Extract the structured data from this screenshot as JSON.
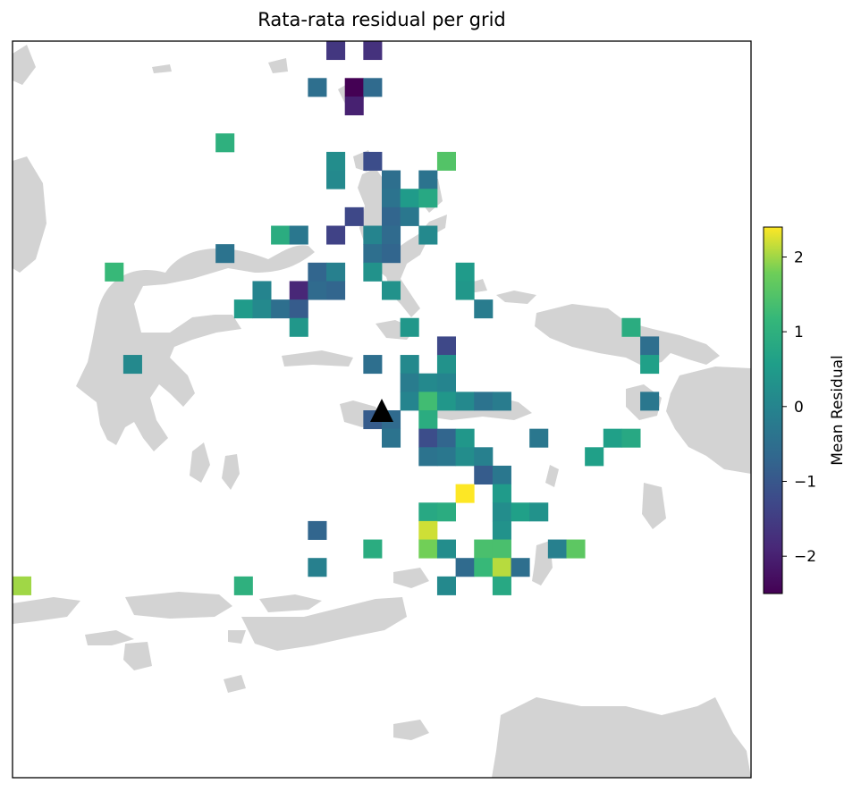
{
  "title": "Rata-rata residual per grid",
  "colors": {
    "land": "#d3d3d3",
    "ocean": "#ffffff",
    "frame": "#000000",
    "station_marker": "#000000",
    "colormap": "viridis"
  },
  "colorbar": {
    "label": "Mean Residual",
    "min": -2.5,
    "max": 2.4,
    "ticks": [
      -2,
      -1,
      0,
      1,
      2
    ],
    "tick_labels": [
      "−2",
      "−1",
      "0",
      "1",
      "2"
    ]
  },
  "station_marker": {
    "shape": "triangle",
    "icon": "triangle-up-icon"
  },
  "chart_data": {
    "type": "heatmap",
    "title": "Rata-rata residual per grid",
    "value_label": "Mean Residual",
    "grid_units": "cell column / row index from top-left of map frame",
    "cells": [
      {
        "col": 17,
        "row": 0,
        "value": -1.6
      },
      {
        "col": 19,
        "row": 0,
        "value": -1.7
      },
      {
        "col": 16,
        "row": 2,
        "value": -0.5
      },
      {
        "col": 18,
        "row": 2,
        "value": -2.5
      },
      {
        "col": 19,
        "row": 2,
        "value": -0.6
      },
      {
        "col": 18,
        "row": 3,
        "value": -2.0
      },
      {
        "col": 11,
        "row": 5,
        "value": 1.0
      },
      {
        "col": 17,
        "row": 6,
        "value": 0.2
      },
      {
        "col": 19,
        "row": 6,
        "value": -1.2
      },
      {
        "col": 23,
        "row": 6,
        "value": 1.5
      },
      {
        "col": 17,
        "row": 7,
        "value": 0.1
      },
      {
        "col": 20,
        "row": 7,
        "value": -0.5
      },
      {
        "col": 22,
        "row": 7,
        "value": -0.4
      },
      {
        "col": 20,
        "row": 8,
        "value": -0.4
      },
      {
        "col": 21,
        "row": 8,
        "value": 0.5
      },
      {
        "col": 22,
        "row": 8,
        "value": 0.8
      },
      {
        "col": 18,
        "row": 9,
        "value": -1.3
      },
      {
        "col": 20,
        "row": 9,
        "value": -0.7
      },
      {
        "col": 21,
        "row": 9,
        "value": -0.3
      },
      {
        "col": 14,
        "row": 10,
        "value": 0.9
      },
      {
        "col": 15,
        "row": 10,
        "value": -0.3
      },
      {
        "col": 17,
        "row": 10,
        "value": -1.4
      },
      {
        "col": 19,
        "row": 10,
        "value": 0.0
      },
      {
        "col": 20,
        "row": 10,
        "value": -0.6
      },
      {
        "col": 22,
        "row": 10,
        "value": 0.1
      },
      {
        "col": 11,
        "row": 11,
        "value": -0.4
      },
      {
        "col": 19,
        "row": 11,
        "value": -0.5
      },
      {
        "col": 20,
        "row": 11,
        "value": -0.7
      },
      {
        "col": 5,
        "row": 12,
        "value": 1.2
      },
      {
        "col": 16,
        "row": 12,
        "value": -0.7
      },
      {
        "col": 17,
        "row": 12,
        "value": -0.1
      },
      {
        "col": 19,
        "row": 12,
        "value": 0.3
      },
      {
        "col": 24,
        "row": 12,
        "value": 0.5
      },
      {
        "col": 13,
        "row": 13,
        "value": 0.0
      },
      {
        "col": 15,
        "row": 13,
        "value": -1.9
      },
      {
        "col": 16,
        "row": 13,
        "value": -0.6
      },
      {
        "col": 17,
        "row": 13,
        "value": -0.7
      },
      {
        "col": 20,
        "row": 13,
        "value": 0.3
      },
      {
        "col": 24,
        "row": 13,
        "value": 0.4
      },
      {
        "col": 12,
        "row": 14,
        "value": 0.5
      },
      {
        "col": 13,
        "row": 14,
        "value": 0.1
      },
      {
        "col": 14,
        "row": 14,
        "value": -0.5
      },
      {
        "col": 15,
        "row": 14,
        "value": -0.9
      },
      {
        "col": 25,
        "row": 14,
        "value": -0.2
      },
      {
        "col": 15,
        "row": 15,
        "value": 0.4
      },
      {
        "col": 21,
        "row": 15,
        "value": 0.4
      },
      {
        "col": 33,
        "row": 15,
        "value": 0.9
      },
      {
        "col": 23,
        "row": 16,
        "value": -1.3
      },
      {
        "col": 34,
        "row": 16,
        "value": -0.5
      },
      {
        "col": 6,
        "row": 17,
        "value": 0.1
      },
      {
        "col": 19,
        "row": 17,
        "value": -0.5
      },
      {
        "col": 21,
        "row": 17,
        "value": 0.1
      },
      {
        "col": 23,
        "row": 17,
        "value": 0.3
      },
      {
        "col": 34,
        "row": 17,
        "value": 0.6
      },
      {
        "col": 21,
        "row": 18,
        "value": -0.2
      },
      {
        "col": 22,
        "row": 18,
        "value": 0.1
      },
      {
        "col": 23,
        "row": 18,
        "value": 0.0
      },
      {
        "col": 21,
        "row": 19,
        "value": 0.0
      },
      {
        "col": 22,
        "row": 19,
        "value": 1.3
      },
      {
        "col": 23,
        "row": 19,
        "value": 0.4
      },
      {
        "col": 24,
        "row": 19,
        "value": 0.1
      },
      {
        "col": 25,
        "row": 19,
        "value": -0.4
      },
      {
        "col": 26,
        "row": 19,
        "value": -0.2
      },
      {
        "col": 34,
        "row": 19,
        "value": -0.3
      },
      {
        "col": 40,
        "row": 19,
        "value": -0.2
      },
      {
        "col": 19,
        "row": 20,
        "value": -0.9
      },
      {
        "col": 20,
        "row": 20,
        "value": -0.6
      },
      {
        "col": 22,
        "row": 20,
        "value": 0.9
      },
      {
        "col": 20,
        "row": 21,
        "value": -0.4
      },
      {
        "col": 22,
        "row": 21,
        "value": -1.2
      },
      {
        "col": 23,
        "row": 21,
        "value": -0.7
      },
      {
        "col": 24,
        "row": 21,
        "value": 0.4
      },
      {
        "col": 28,
        "row": 21,
        "value": -0.3
      },
      {
        "col": 32,
        "row": 21,
        "value": 0.6
      },
      {
        "col": 33,
        "row": 21,
        "value": 0.8
      },
      {
        "col": 22,
        "row": 22,
        "value": -0.4
      },
      {
        "col": 23,
        "row": 22,
        "value": -0.3
      },
      {
        "col": 24,
        "row": 22,
        "value": 0.2
      },
      {
        "col": 25,
        "row": 22,
        "value": -0.1
      },
      {
        "col": 31,
        "row": 22,
        "value": 0.6
      },
      {
        "col": 25,
        "row": 23,
        "value": -0.9
      },
      {
        "col": 26,
        "row": 23,
        "value": -0.3
      },
      {
        "col": 24,
        "row": 24,
        "value": 2.4
      },
      {
        "col": 26,
        "row": 24,
        "value": 0.5
      },
      {
        "col": 22,
        "row": 25,
        "value": 0.8
      },
      {
        "col": 23,
        "row": 25,
        "value": 0.9
      },
      {
        "col": 26,
        "row": 25,
        "value": 0.2
      },
      {
        "col": 27,
        "row": 25,
        "value": 0.6
      },
      {
        "col": 28,
        "row": 25,
        "value": 0.3
      },
      {
        "col": 16,
        "row": 26,
        "value": -0.7
      },
      {
        "col": 22,
        "row": 26,
        "value": 2.2
      },
      {
        "col": 26,
        "row": 26,
        "value": 0.3
      },
      {
        "col": 19,
        "row": 27,
        "value": 0.9
      },
      {
        "col": 22,
        "row": 27,
        "value": 1.8
      },
      {
        "col": 23,
        "row": 27,
        "value": 0.2
      },
      {
        "col": 25,
        "row": 27,
        "value": 1.4
      },
      {
        "col": 26,
        "row": 27,
        "value": 1.4
      },
      {
        "col": 29,
        "row": 27,
        "value": -0.1
      },
      {
        "col": 30,
        "row": 27,
        "value": 1.6
      },
      {
        "col": 16,
        "row": 28,
        "value": -0.1
      },
      {
        "col": 24,
        "row": 28,
        "value": -0.6
      },
      {
        "col": 25,
        "row": 28,
        "value": 1.2
      },
      {
        "col": 26,
        "row": 28,
        "value": 2.1
      },
      {
        "col": 27,
        "row": 28,
        "value": -0.5
      },
      {
        "col": 0,
        "row": 29,
        "value": 2.0
      },
      {
        "col": 12,
        "row": 29,
        "value": 1.0
      },
      {
        "col": 23,
        "row": 29,
        "value": 0.1
      },
      {
        "col": 26,
        "row": 29,
        "value": 0.8
      }
    ]
  }
}
